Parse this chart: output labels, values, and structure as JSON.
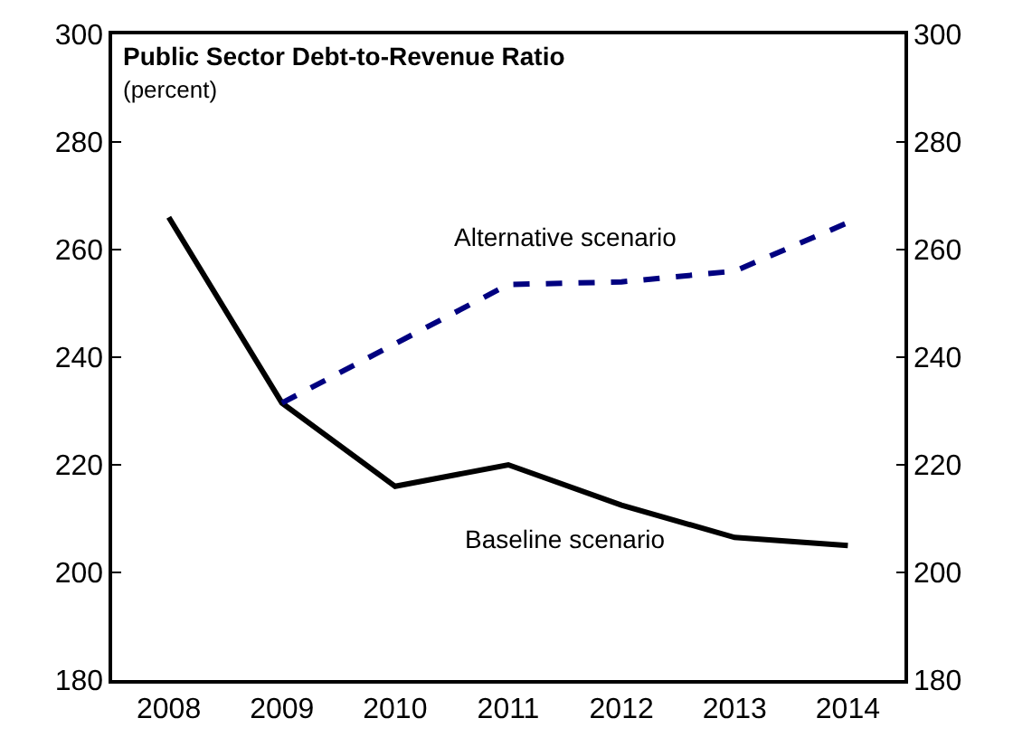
{
  "chart_data": {
    "type": "line",
    "title": "Public Sector Debt-to-Revenue Ratio",
    "subtitle": "(percent)",
    "categories": [
      "2008",
      "2009",
      "2010",
      "2011",
      "2012",
      "2013",
      "2014"
    ],
    "series": [
      {
        "name": "Baseline scenario",
        "color": "#000000",
        "line_style": "solid",
        "values": [
          266,
          231.5,
          216,
          220,
          212.5,
          206.5,
          205
        ]
      },
      {
        "name": "Alternative scenario",
        "color": "#000080",
        "line_style": "dashed",
        "values": [
          null,
          231.5,
          242.5,
          253.5,
          254,
          256,
          265
        ]
      }
    ],
    "ylim": [
      180,
      300
    ],
    "yticks": [
      180,
      200,
      220,
      240,
      260,
      280,
      300
    ],
    "y2lim": [
      180,
      300
    ],
    "y2ticks": [
      180,
      200,
      220,
      240,
      260,
      280,
      300
    ],
    "grid": false,
    "legend": false,
    "marker": "none"
  }
}
